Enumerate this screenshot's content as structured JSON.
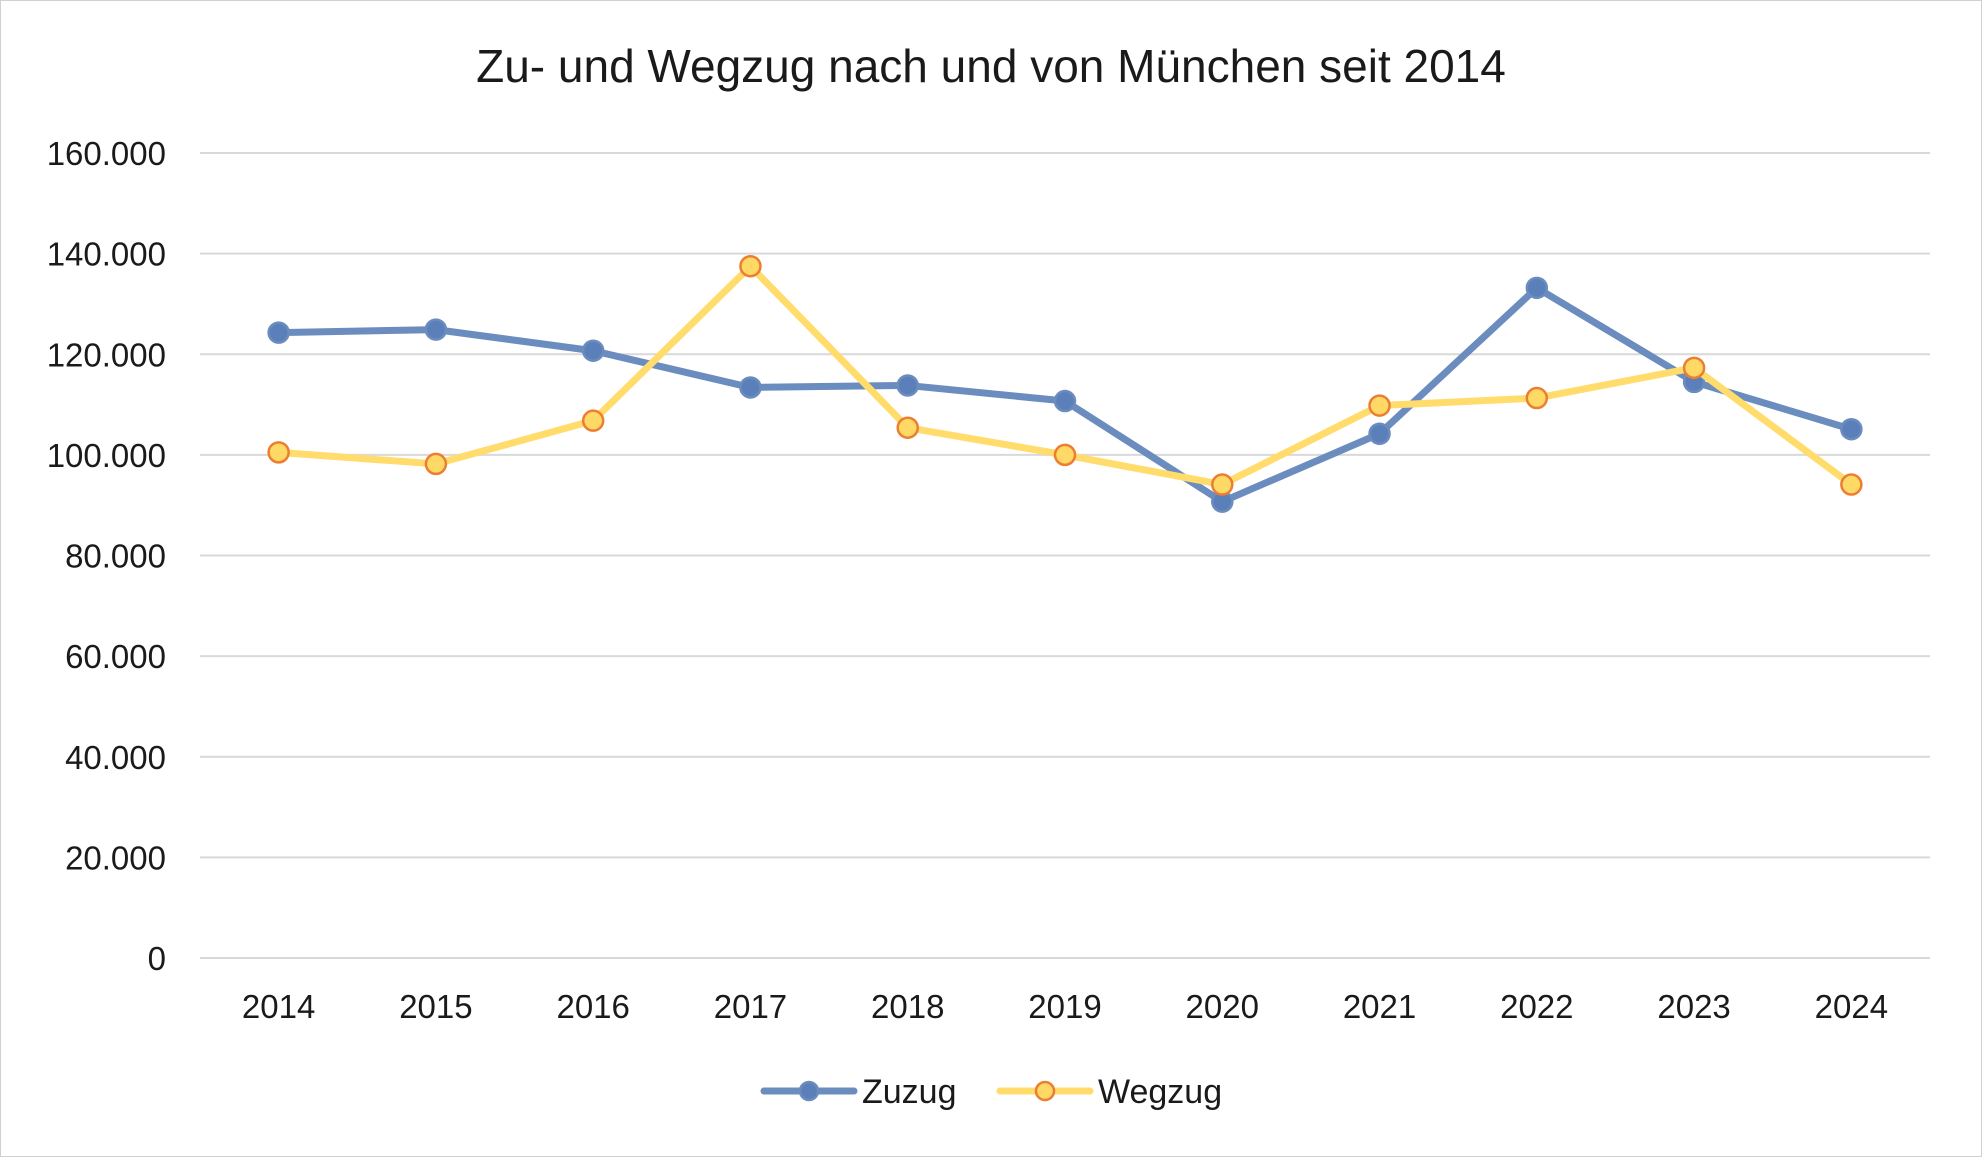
{
  "chart_data": {
    "type": "line",
    "title": "Zu- und Wegzug nach und von München seit 2014",
    "xlabel": "",
    "ylabel": "",
    "categories": [
      "2014",
      "2015",
      "2016",
      "2017",
      "2018",
      "2019",
      "2020",
      "2021",
      "2022",
      "2023",
      "2024"
    ],
    "ylim": [
      0,
      160000
    ],
    "yticks": [
      0,
      20000,
      40000,
      60000,
      80000,
      100000,
      120000,
      140000,
      160000
    ],
    "ytick_labels": [
      "0",
      "20.000",
      "40.000",
      "60.000",
      "80.000",
      "100.000",
      "120.000",
      "140.000",
      "160.000"
    ],
    "grid": true,
    "legend_position": "bottom",
    "series": [
      {
        "name": "Zuzug",
        "color": "#6b8cbe",
        "marker_fill": "#5b7fb8",
        "values": [
          124300,
          124900,
          120700,
          113400,
          113800,
          110700,
          90700,
          104200,
          133200,
          114500,
          105100
        ]
      },
      {
        "name": "Wegzug",
        "color": "#ffdc6b",
        "marker_fill": "#ffd966",
        "marker_stroke": "#ed7d31",
        "values": [
          100500,
          98200,
          106800,
          137500,
          105400,
          100000,
          94100,
          109800,
          111300,
          117300,
          94100
        ]
      }
    ]
  }
}
